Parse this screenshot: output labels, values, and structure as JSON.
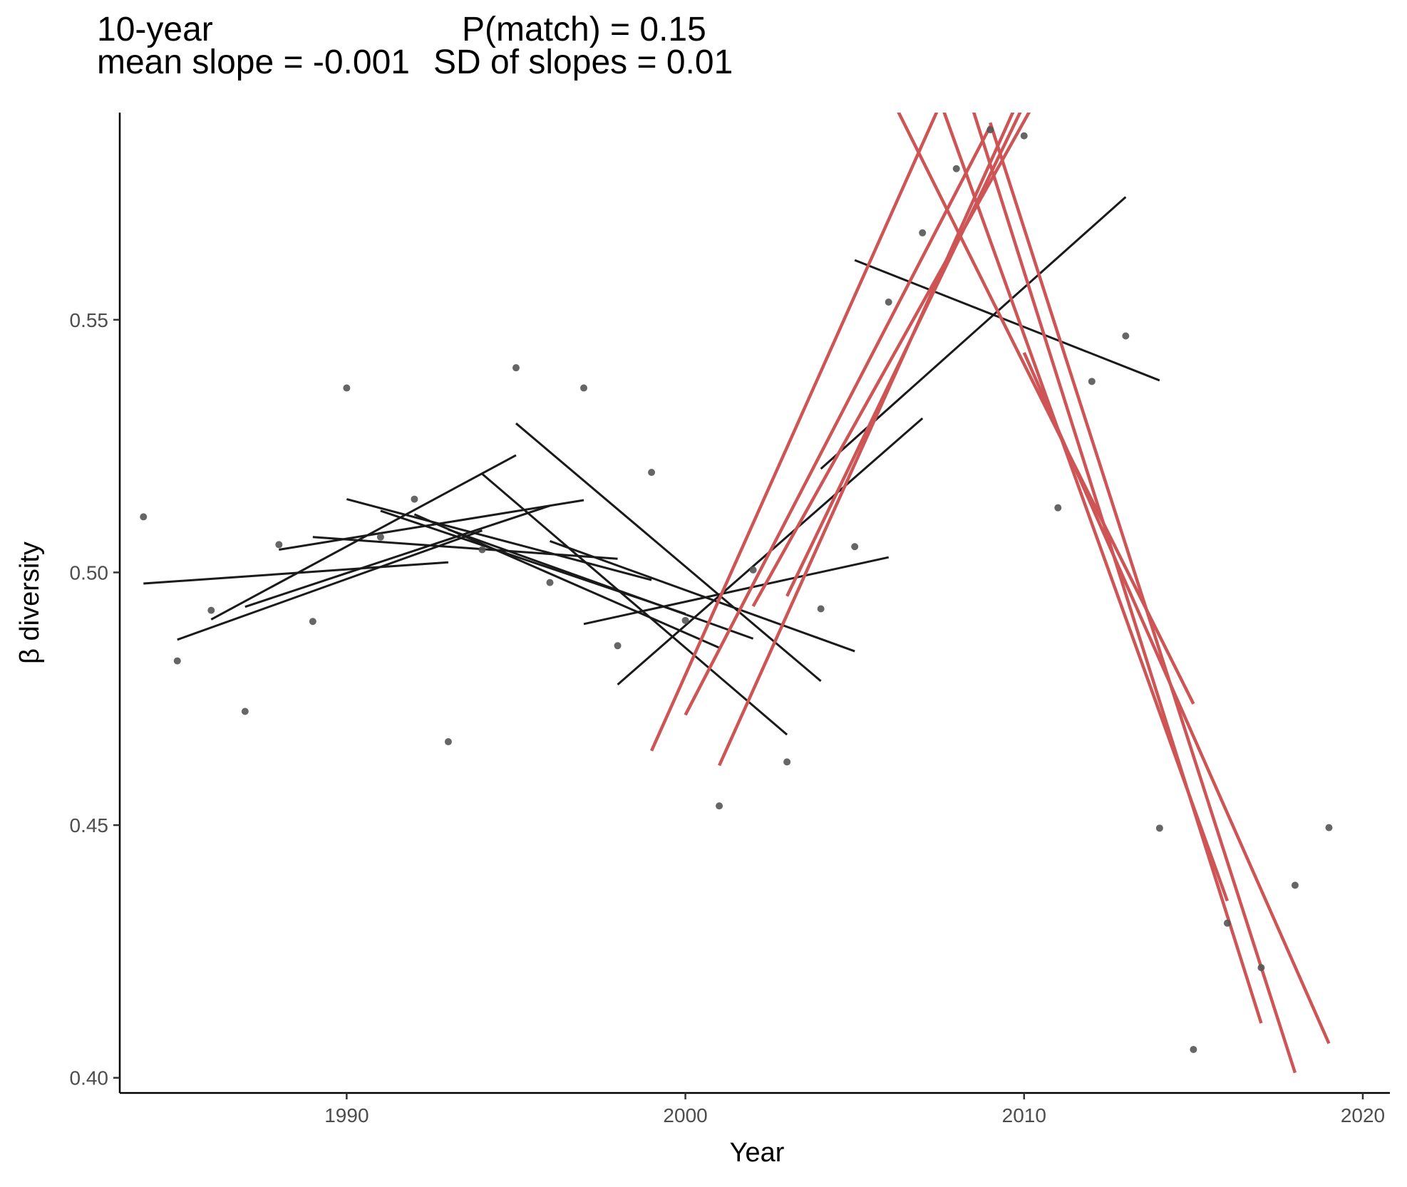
{
  "header": {
    "left_line1": "10-year",
    "left_line2": "mean slope = -0.001",
    "right_line1": "P(match) = 0.15",
    "right_line2": "SD of slopes = 0.01"
  },
  "chart_data": {
    "type": "scatter",
    "xlabel": "Year",
    "ylabel": "β diversity",
    "xlim": [
      1983.3,
      2020.8
    ],
    "ylim": [
      0.397,
      0.591
    ],
    "x_ticks": [
      1990,
      2000,
      2010,
      2020
    ],
    "y_ticks": [
      0.4,
      0.45,
      0.5,
      0.55
    ],
    "x_tick_labels": [
      "1990",
      "2000",
      "2010",
      "2020"
    ],
    "y_tick_labels": [
      "0.40",
      "0.45",
      "0.50",
      "0.55"
    ],
    "grid": false,
    "legend": "none",
    "colors": {
      "points": "#555555",
      "fit_lines": "#1a1a1a",
      "matched_lines": "#cd5555"
    },
    "points": [
      {
        "x": 1984,
        "y": 0.511
      },
      {
        "x": 1985,
        "y": 0.4825
      },
      {
        "x": 1986,
        "y": 0.4925
      },
      {
        "x": 1987,
        "y": 0.4725
      },
      {
        "x": 1988,
        "y": 0.5055
      },
      {
        "x": 1989,
        "y": 0.4903
      },
      {
        "x": 1990,
        "y": 0.5365
      },
      {
        "x": 1991,
        "y": 0.507
      },
      {
        "x": 1992,
        "y": 0.5145
      },
      {
        "x": 1993,
        "y": 0.4665
      },
      {
        "x": 1994,
        "y": 0.5045
      },
      {
        "x": 1995,
        "y": 0.5405
      },
      {
        "x": 1996,
        "y": 0.498
      },
      {
        "x": 1997,
        "y": 0.5365
      },
      {
        "x": 1998,
        "y": 0.4855
      },
      {
        "x": 1999,
        "y": 0.5198
      },
      {
        "x": 2000,
        "y": 0.4905
      },
      {
        "x": 2001,
        "y": 0.4538
      },
      {
        "x": 2002,
        "y": 0.5005
      },
      {
        "x": 2003,
        "y": 0.4625
      },
      {
        "x": 2004,
        "y": 0.4928
      },
      {
        "x": 2005,
        "y": 0.5051
      },
      {
        "x": 2006,
        "y": 0.5535
      },
      {
        "x": 2007,
        "y": 0.5672
      },
      {
        "x": 2008,
        "y": 0.5799
      },
      {
        "x": 2009,
        "y": 0.5876
      },
      {
        "x": 2010,
        "y": 0.5864
      },
      {
        "x": 2011,
        "y": 0.5128
      },
      {
        "x": 2012,
        "y": 0.5378
      },
      {
        "x": 2013,
        "y": 0.5468
      },
      {
        "x": 2014,
        "y": 0.4494
      },
      {
        "x": 2015,
        "y": 0.4056
      },
      {
        "x": 2016,
        "y": 0.4306
      },
      {
        "x": 2017,
        "y": 0.4218
      },
      {
        "x": 2018,
        "y": 0.4381
      },
      {
        "x": 2019,
        "y": 0.4495
      }
    ],
    "series": [
      {
        "segments": [
          {
            "x1": 1984,
            "y1": 0.4978,
            "x2": 1993,
            "y2": 0.502
          },
          {
            "x1": 1985,
            "y1": 0.4867,
            "x2": 1994,
            "y2": 0.5083
          },
          {
            "x1": 1986,
            "y1": 0.4907,
            "x2": 1995,
            "y2": 0.5232
          },
          {
            "x1": 1987,
            "y1": 0.4932,
            "x2": 1996,
            "y2": 0.5132
          },
          {
            "x1": 1988,
            "y1": 0.5045,
            "x2": 1997,
            "y2": 0.5143
          },
          {
            "x1": 1989,
            "y1": 0.507,
            "x2": 1998,
            "y2": 0.5027
          },
          {
            "x1": 1990,
            "y1": 0.5145,
            "x2": 1999,
            "y2": 0.4985
          },
          {
            "x1": 1991,
            "y1": 0.5122,
            "x2": 2000,
            "y2": 0.4918
          },
          {
            "x1": 1992,
            "y1": 0.5115,
            "x2": 2001,
            "y2": 0.4851
          },
          {
            "x1": 1993,
            "y1": 0.5085,
            "x2": 2002,
            "y2": 0.4869
          },
          {
            "x1": 1994,
            "y1": 0.5195,
            "x2": 2003,
            "y2": 0.4679
          },
          {
            "x1": 1995,
            "y1": 0.5295,
            "x2": 2004,
            "y2": 0.4785
          },
          {
            "x1": 1996,
            "y1": 0.5062,
            "x2": 2005,
            "y2": 0.4844
          },
          {
            "x1": 1997,
            "y1": 0.4898,
            "x2": 2006,
            "y2": 0.503
          },
          {
            "x1": 1998,
            "y1": 0.4778,
            "x2": 2007,
            "y2": 0.5305
          },
          {
            "x1": 2004,
            "y1": 0.5205,
            "x2": 2013,
            "y2": 0.5743
          },
          {
            "x1": 2005,
            "y1": 0.5618,
            "x2": 2014,
            "y2": 0.538
          }
        ]
      },
      {
        "segments": [
          {
            "x1": 1999,
            "y1": 0.4647,
            "x2": 2008,
            "y2": 0.5998
          },
          {
            "x1": 2000,
            "y1": 0.4718,
            "x2": 2009,
            "y2": 0.5883
          },
          {
            "x1": 2001,
            "y1": 0.4618,
            "x2": 2010,
            "y2": 0.596
          },
          {
            "x1": 2002,
            "y1": 0.4933,
            "x2": 2011,
            "y2": 0.6013
          },
          {
            "x1": 2003,
            "y1": 0.4953,
            "x2": 2012,
            "y2": 0.6205
          },
          {
            "x1": 2006,
            "y1": 0.595,
            "x2": 2015,
            "y2": 0.474
          },
          {
            "x1": 2007,
            "y1": 0.603,
            "x2": 2016,
            "y2": 0.435
          },
          {
            "x1": 2008,
            "y1": 0.602,
            "x2": 2017,
            "y2": 0.4108
          },
          {
            "x1": 2009,
            "y1": 0.589,
            "x2": 2018,
            "y2": 0.401
          },
          {
            "x1": 2010,
            "y1": 0.5435,
            "x2": 2019,
            "y2": 0.4068
          }
        ]
      }
    ]
  }
}
